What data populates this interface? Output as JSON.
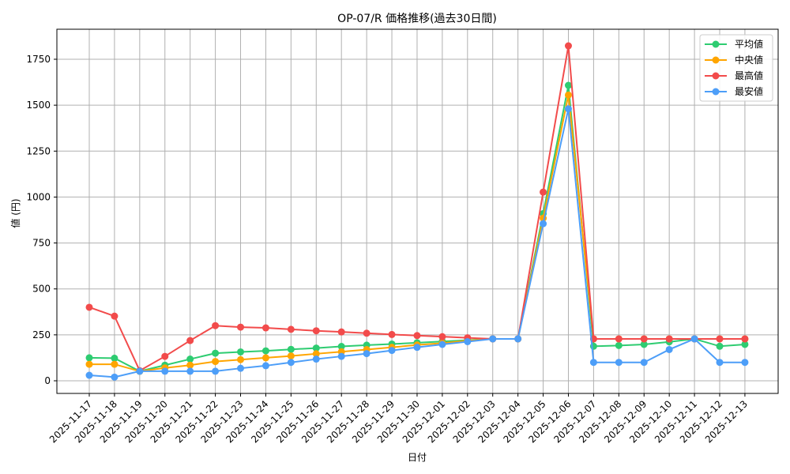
{
  "chart_data": {
    "type": "line",
    "title": "OP-07/R 価格推移(過去30日間)",
    "xlabel": "日付",
    "ylabel": "値 (円)",
    "ylim": [
      -65,
      1910
    ],
    "yticks": [
      0,
      250,
      500,
      750,
      1000,
      1250,
      1500,
      1750
    ],
    "grid": true,
    "legend_position": "upper right",
    "x": [
      "2025-11-17",
      "2025-11-18",
      "2025-11-19",
      "2025-11-20",
      "2025-11-21",
      "2025-11-22",
      "2025-11-23",
      "2025-11-24",
      "2025-11-25",
      "2025-11-26",
      "2025-11-27",
      "2025-11-28",
      "2025-11-29",
      "2025-11-30",
      "2025-12-01",
      "2025-12-02",
      "2025-12-03",
      "2025-12-04",
      "2025-12-05",
      "2025-12-06",
      "2025-12-07",
      "2025-12-08",
      "2025-12-09",
      "2025-12-10",
      "2025-12-11",
      "2025-12-12",
      "2025-12-13"
    ],
    "series": [
      {
        "name": "平均値",
        "color": "#2ecc71",
        "values": [
          125,
          123,
          52,
          85,
          118,
          150,
          157,
          163,
          171,
          178,
          187,
          194,
          200,
          207,
          214,
          221,
          228,
          228,
          910,
          1608,
          188,
          192,
          198,
          212,
          228,
          188,
          198
        ]
      },
      {
        "name": "中央値",
        "color": "#ffa500",
        "values": [
          90,
          90,
          52,
          70,
          85,
          105,
          115,
          125,
          135,
          147,
          158,
          170,
          182,
          195,
          205,
          218,
          228,
          228,
          885,
          1555,
          228,
          228,
          228,
          228,
          228,
          228,
          228
        ]
      },
      {
        "name": "最高値",
        "color": "#f24b4b",
        "values": [
          400,
          352,
          55,
          133,
          219,
          300,
          292,
          288,
          280,
          272,
          266,
          259,
          252,
          246,
          240,
          234,
          228,
          228,
          1027,
          1823,
          228,
          228,
          228,
          228,
          228,
          228,
          228
        ]
      },
      {
        "name": "最安値",
        "color": "#4d9ef8",
        "values": [
          30,
          20,
          52,
          52,
          52,
          52,
          68,
          82,
          100,
          118,
          133,
          148,
          165,
          182,
          198,
          213,
          228,
          228,
          855,
          1480,
          100,
          100,
          100,
          170,
          228,
          100,
          100
        ]
      }
    ]
  }
}
